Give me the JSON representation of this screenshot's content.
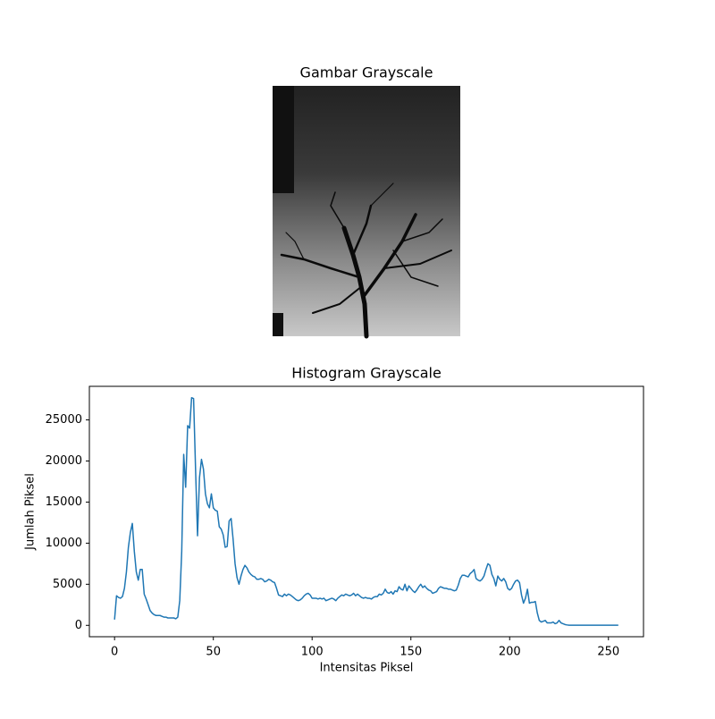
{
  "chart_data": [
    {
      "type": "image",
      "title": "Gambar Grayscale"
    },
    {
      "type": "line",
      "title": "Histogram Grayscale",
      "xlabel": "Intensitas Piksel",
      "ylabel": "Jumlah Piksel",
      "x": [
        0,
        1,
        2,
        3,
        4,
        5,
        6,
        7,
        8,
        9,
        10,
        11,
        12,
        13,
        14,
        15,
        16,
        17,
        18,
        19,
        20,
        21,
        22,
        23,
        24,
        25,
        26,
        27,
        28,
        29,
        30,
        31,
        32,
        33,
        34,
        35,
        36,
        37,
        38,
        39,
        40,
        41,
        42,
        43,
        44,
        45,
        46,
        47,
        48,
        49,
        50,
        51,
        52,
        53,
        54,
        55,
        56,
        57,
        58,
        59,
        60,
        61,
        62,
        63,
        64,
        65,
        66,
        67,
        68,
        69,
        70,
        71,
        72,
        73,
        74,
        75,
        76,
        77,
        78,
        79,
        80,
        81,
        82,
        83,
        84,
        85,
        86,
        87,
        88,
        89,
        90,
        91,
        92,
        93,
        94,
        95,
        96,
        97,
        98,
        99,
        100,
        101,
        102,
        103,
        104,
        105,
        106,
        107,
        108,
        109,
        110,
        111,
        112,
        113,
        114,
        115,
        116,
        117,
        118,
        119,
        120,
        121,
        122,
        123,
        124,
        125,
        126,
        127,
        128,
        129,
        130,
        131,
        132,
        133,
        134,
        135,
        136,
        137,
        138,
        139,
        140,
        141,
        142,
        143,
        144,
        145,
        146,
        147,
        148,
        149,
        150,
        151,
        152,
        153,
        154,
        155,
        156,
        157,
        158,
        159,
        160,
        161,
        162,
        163,
        164,
        165,
        166,
        167,
        168,
        169,
        170,
        171,
        172,
        173,
        174,
        175,
        176,
        177,
        178,
        179,
        180,
        181,
        182,
        183,
        184,
        185,
        186,
        187,
        188,
        189,
        190,
        191,
        192,
        193,
        194,
        195,
        196,
        197,
        198,
        199,
        200,
        201,
        202,
        203,
        204,
        205,
        206,
        207,
        208,
        209,
        210,
        211,
        212,
        213,
        214,
        215,
        216,
        217,
        218,
        219,
        220,
        221,
        222,
        223,
        224,
        225,
        226,
        227,
        228,
        229,
        230,
        231,
        232,
        233,
        234,
        235,
        236,
        237,
        238,
        239,
        240,
        241,
        242,
        243,
        244,
        245,
        246,
        247,
        248,
        249,
        250,
        251,
        252,
        253,
        254,
        255
      ],
      "series": [
        {
          "name": "Histogram",
          "color": "#1f77b4",
          "values": [
            700,
            3600,
            3400,
            3300,
            3500,
            4500,
            6500,
            9500,
            11300,
            12400,
            9000,
            6500,
            5500,
            6800,
            6800,
            3800,
            3200,
            2500,
            1800,
            1500,
            1300,
            1200,
            1200,
            1200,
            1100,
            1000,
            1000,
            900,
            900,
            900,
            900,
            800,
            1000,
            3000,
            9000,
            20800,
            16800,
            24300,
            24000,
            27700,
            27600,
            19000,
            10900,
            18000,
            20200,
            19000,
            16000,
            14800,
            14300,
            16000,
            14300,
            14000,
            13900,
            12000,
            11700,
            11000,
            9500,
            9600,
            12700,
            13000,
            10500,
            7500,
            5800,
            5000,
            6000,
            6800,
            7300,
            7000,
            6500,
            6200,
            6000,
            5900,
            5600,
            5600,
            5700,
            5600,
            5300,
            5400,
            5600,
            5500,
            5300,
            5200,
            4500,
            3700,
            3600,
            3500,
            3800,
            3600,
            3800,
            3700,
            3500,
            3300,
            3100,
            3000,
            3100,
            3300,
            3600,
            3800,
            3900,
            3700,
            3300,
            3300,
            3300,
            3200,
            3300,
            3200,
            3300,
            3000,
            3100,
            3200,
            3300,
            3200,
            3000,
            3300,
            3500,
            3700,
            3600,
            3800,
            3700,
            3600,
            3700,
            3900,
            3600,
            3800,
            3600,
            3400,
            3300,
            3400,
            3300,
            3300,
            3200,
            3400,
            3500,
            3500,
            3800,
            3700,
            3900,
            4400,
            4000,
            3900,
            4100,
            3800,
            4200,
            4100,
            4700,
            4400,
            4300,
            5000,
            4200,
            4800,
            4500,
            4200,
            4000,
            4300,
            4700,
            5000,
            4600,
            4800,
            4500,
            4300,
            4200,
            3900,
            4000,
            4100,
            4500,
            4700,
            4600,
            4500,
            4500,
            4400,
            4400,
            4300,
            4200,
            4300,
            4900,
            5700,
            6100,
            6100,
            6000,
            5900,
            6300,
            6500,
            6800,
            5700,
            5500,
            5400,
            5600,
            6000,
            6800,
            7500,
            7300,
            6200,
            5700,
            4800,
            6000,
            5600,
            5400,
            5700,
            5300,
            4500,
            4300,
            4500,
            5000,
            5400,
            5500,
            5200,
            3700,
            2700,
            3300,
            4400,
            2700,
            2800,
            2800,
            2900,
            1500,
            600,
            400,
            500,
            600,
            300,
            300,
            300,
            400,
            200,
            300,
            600,
            300,
            200,
            100,
            50,
            20,
            20,
            20,
            20,
            20,
            20,
            20,
            20,
            20,
            20,
            20,
            20,
            20,
            20,
            20,
            20,
            20,
            20,
            20,
            20,
            20,
            20,
            20,
            20,
            20,
            20
          ]
        }
      ],
      "xlim": [
        -12.75,
        267.75
      ],
      "ylim": [
        -1385,
        29085
      ],
      "xticks": [
        0,
        50,
        100,
        150,
        200,
        250
      ],
      "yticks": [
        0,
        5000,
        10000,
        15000,
        20000,
        25000
      ]
    }
  ]
}
